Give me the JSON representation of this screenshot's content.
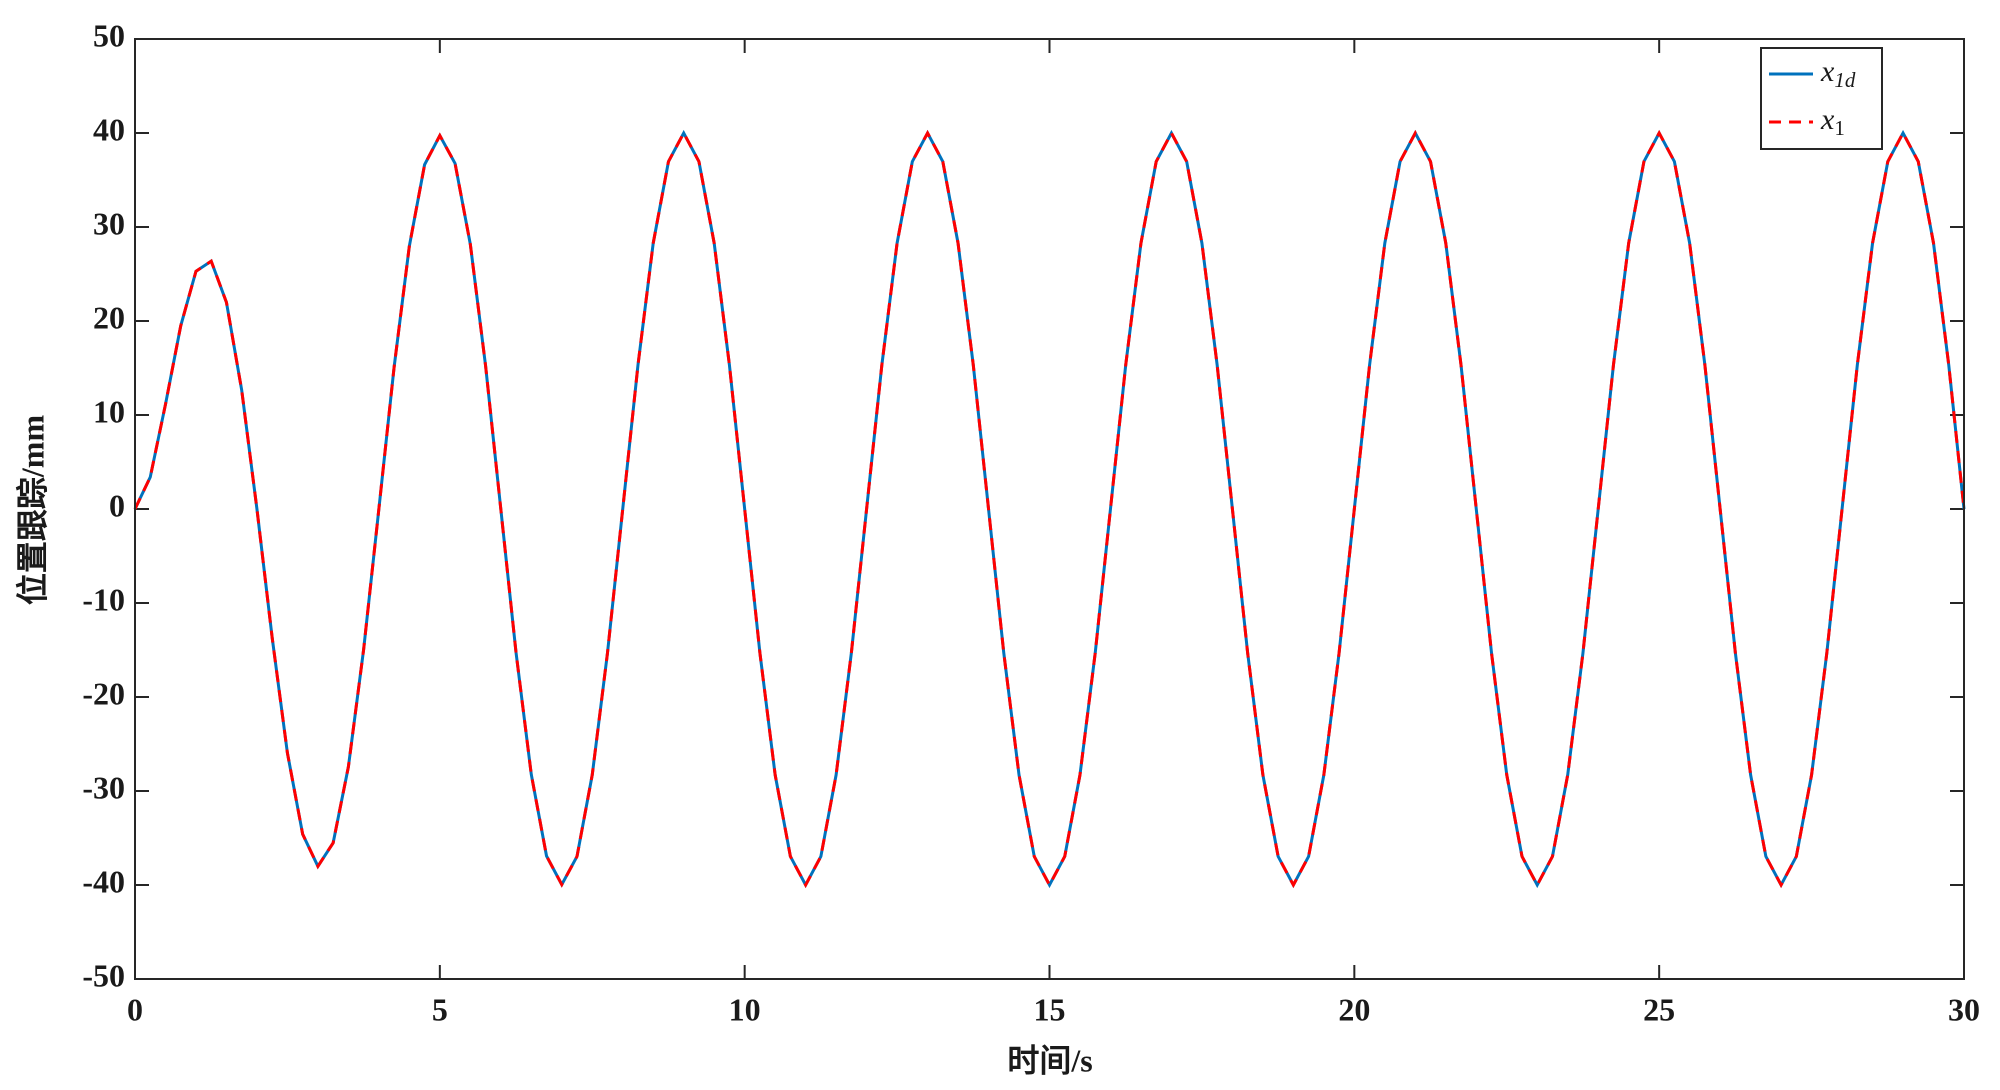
{
  "chart_data": {
    "type": "line",
    "xlabel": "时间/s",
    "ylabel": "位置跟踪/mm",
    "x": [
      0,
      0.25,
      0.5,
      0.75,
      1,
      1.25,
      1.5,
      1.75,
      2,
      2.25,
      2.5,
      2.75,
      3,
      3.25,
      3.5,
      3.75,
      4,
      4.25,
      4.5,
      4.75,
      5,
      5.25,
      5.5,
      5.75,
      6,
      6.25,
      6.5,
      6.75,
      7,
      7.25,
      7.5,
      7.75,
      8,
      8.25,
      8.5,
      8.75,
      9,
      9.25,
      9.5,
      9.75,
      10,
      10.25,
      10.5,
      10.75,
      11,
      11.25,
      11.5,
      11.75,
      12,
      12.25,
      12.5,
      12.75,
      13,
      13.25,
      13.5,
      13.75,
      14,
      14.25,
      14.5,
      14.75,
      15,
      15.25,
      15.5,
      15.75,
      16,
      16.25,
      16.5,
      16.75,
      17,
      17.25,
      17.5,
      17.75,
      18,
      18.25,
      18.5,
      18.75,
      19,
      19.25,
      19.5,
      19.75,
      20,
      20.25,
      20.5,
      20.75,
      21,
      21.25,
      21.5,
      21.75,
      22,
      22.25,
      22.5,
      22.75,
      23,
      23.25,
      23.5,
      23.75,
      24,
      24.25,
      24.5,
      24.75,
      25,
      25.25,
      25.5,
      25.75,
      26,
      26.25,
      26.5,
      26.75,
      27,
      27.25,
      27.5,
      27.75,
      28,
      28.25,
      28.5,
      28.75,
      29,
      29.25,
      29.5,
      29.75,
      30
    ],
    "series": [
      {
        "name": "x1d",
        "color": "#0072bd",
        "dash": false,
        "values": [
          0,
          3.39,
          11.13,
          19.49,
          25.29,
          26.37,
          21.98,
          12.65,
          0,
          -13.69,
          -25.96,
          -34.59,
          -38.01,
          -35.52,
          -27.43,
          -14.95,
          0,
          15.09,
          27.97,
          36.63,
          39.73,
          36.76,
          28.17,
          15.26,
          0,
          -15.28,
          -28.24,
          -36.91,
          -39.96,
          -36.96,
          -28.28,
          -15.31,
          0,
          15.31,
          28.28,
          36.96,
          40,
          36.96,
          28.28,
          15.31,
          0,
          -15.31,
          -28.28,
          -36.96,
          -40,
          -36.96,
          -28.28,
          -15.31,
          0,
          15.31,
          28.28,
          36.96,
          40,
          36.96,
          28.28,
          15.31,
          0,
          -15.31,
          -28.28,
          -36.96,
          -40,
          -36.96,
          -28.28,
          -15.31,
          0,
          15.31,
          28.28,
          36.96,
          40,
          36.96,
          28.28,
          15.31,
          0,
          -15.31,
          -28.28,
          -36.96,
          -40,
          -36.96,
          -28.28,
          -15.31,
          0,
          15.31,
          28.28,
          36.96,
          40,
          36.96,
          28.28,
          15.31,
          0,
          -15.31,
          -28.28,
          -36.96,
          -40,
          -36.96,
          -28.28,
          -15.31,
          0,
          15.31,
          28.28,
          36.96,
          40,
          36.96,
          28.28,
          15.31,
          0,
          -15.31,
          -28.28,
          -36.96,
          -40,
          -36.96,
          -28.28,
          -15.31,
          0,
          15.31,
          28.28,
          36.96,
          40,
          36.96,
          28.28,
          15.31,
          0
        ]
      },
      {
        "name": "x1",
        "color": "#ff0000",
        "dash": true,
        "values": [
          0,
          3.39,
          11.13,
          19.49,
          25.29,
          26.37,
          21.98,
          12.65,
          0,
          -13.69,
          -25.96,
          -34.59,
          -38.01,
          -35.52,
          -27.43,
          -14.95,
          0,
          15.09,
          27.97,
          36.63,
          39.73,
          36.76,
          28.17,
          15.26,
          0,
          -15.28,
          -28.24,
          -36.91,
          -39.96,
          -36.96,
          -28.28,
          -15.31,
          0,
          15.31,
          28.28,
          36.96,
          40,
          36.96,
          28.28,
          15.31,
          0,
          -15.31,
          -28.28,
          -36.96,
          -40,
          -36.96,
          -28.28,
          -15.31,
          0,
          15.31,
          28.28,
          36.96,
          40,
          36.96,
          28.28,
          15.31,
          0,
          -15.31,
          -28.28,
          -36.96,
          -40,
          -36.96,
          -28.28,
          -15.31,
          0,
          15.31,
          28.28,
          36.96,
          40,
          36.96,
          28.28,
          15.31,
          0,
          -15.31,
          -28.28,
          -36.96,
          -40,
          -36.96,
          -28.28,
          -15.31,
          0,
          15.31,
          28.28,
          36.96,
          40,
          36.96,
          28.28,
          15.31,
          0,
          -15.31,
          -28.28,
          -36.96,
          -40,
          -36.96,
          -28.28,
          -15.31,
          0,
          15.31,
          28.28,
          36.96,
          40,
          36.96,
          28.28,
          15.31,
          0,
          -15.31,
          -28.28,
          -36.96,
          -40,
          -36.96,
          -28.28,
          -15.31,
          0,
          15.31,
          28.28,
          36.96,
          40,
          36.96,
          28.28,
          15.31,
          0
        ]
      }
    ],
    "xlim": [
      0,
      30
    ],
    "xticks": [
      0,
      5,
      10,
      15,
      20,
      25,
      30
    ],
    "ylim": [
      -50,
      50
    ],
    "yticks": [
      -50,
      -40,
      -30,
      -20,
      -10,
      0,
      10,
      20,
      30,
      40,
      50
    ],
    "grid": false,
    "legend": "upper right"
  }
}
